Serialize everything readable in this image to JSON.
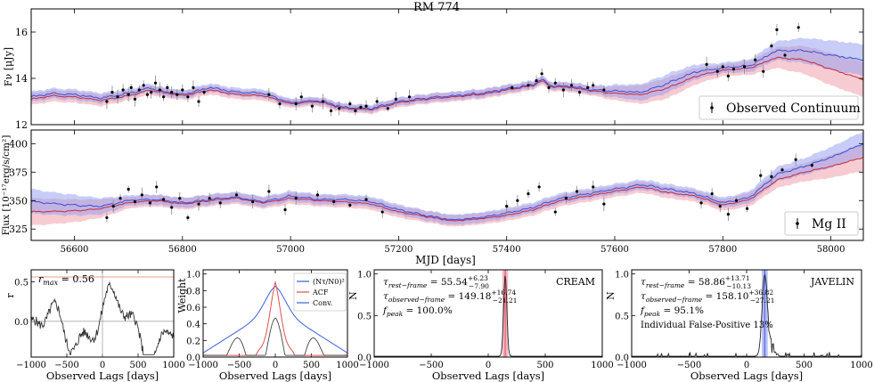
{
  "figure": {
    "title": "RM 774",
    "shared_xlabel": "MJD [days]"
  },
  "colors": {
    "cont_model_a": "#3b4dd6",
    "cont_model_b": "#c8283a",
    "band_blue": "#8f9bf0",
    "band_red": "#f2a9b4",
    "points": "#000000",
    "lag_curve": "#333333",
    "acf_red": "#e05050",
    "conv_blue": "#3c5de0",
    "nt_black": "#444444"
  },
  "chart_data": [
    {
      "id": "continuum",
      "type": "line",
      "ylabel": "Fν [μJy]",
      "xlim": [
        56520,
        58060
      ],
      "ylim": [
        12,
        17
      ],
      "yticks": [
        12,
        14,
        16
      ],
      "legend": "Observed Continuum",
      "legend_position": "bottom-right",
      "model_x": [
        56520,
        56560,
        56600,
        56650,
        56700,
        56740,
        56760,
        56800,
        56850,
        56900,
        56950,
        57000,
        57050,
        57100,
        57150,
        57200,
        57250,
        57300,
        57350,
        57400,
        57450,
        57465,
        57480,
        57520,
        57560,
        57600,
        57650,
        57700,
        57750,
        57800,
        57850,
        57900,
        57950,
        58000,
        58060
      ],
      "model_blue": [
        13.2,
        13.35,
        13.3,
        13.15,
        13.35,
        13.6,
        13.45,
        13.3,
        13.6,
        13.4,
        13.35,
        12.95,
        13.05,
        12.75,
        12.7,
        13.0,
        13.15,
        13.25,
        13.35,
        13.55,
        13.75,
        13.95,
        13.7,
        13.65,
        13.5,
        13.45,
        13.4,
        13.8,
        14.3,
        14.45,
        14.55,
        15.2,
        15.2,
        15.0,
        14.8
      ],
      "model_red": [
        13.1,
        13.25,
        13.2,
        13.05,
        13.25,
        13.5,
        13.4,
        13.25,
        13.5,
        13.3,
        13.25,
        12.9,
        13.0,
        12.7,
        12.65,
        12.95,
        13.1,
        13.2,
        13.3,
        13.5,
        13.7,
        13.9,
        13.65,
        13.6,
        13.45,
        13.35,
        13.3,
        13.6,
        14.1,
        14.35,
        14.45,
        14.9,
        14.8,
        14.4,
        13.95
      ],
      "band_halfwidth": [
        0.25,
        0.25,
        0.25,
        0.25,
        0.2,
        0.2,
        0.2,
        0.2,
        0.2,
        0.2,
        0.2,
        0.18,
        0.18,
        0.18,
        0.18,
        0.2,
        0.2,
        0.2,
        0.2,
        0.2,
        0.18,
        0.18,
        0.18,
        0.2,
        0.2,
        0.3,
        0.4,
        0.45,
        0.35,
        0.25,
        0.3,
        0.45,
        0.6,
        0.7,
        0.75
      ],
      "points_x": [
        56660,
        56670,
        56680,
        56690,
        56700,
        56705,
        56712,
        56720,
        56728,
        56735,
        56742,
        56750,
        56758,
        56765,
        56772,
        56780,
        56790,
        56800,
        56810,
        56820,
        56830,
        56840,
        56960,
        56980,
        57010,
        57020,
        57040,
        57060,
        57075,
        57090,
        57110,
        57120,
        57130,
        57140,
        57160,
        57180,
        57195,
        57220,
        57410,
        57440,
        57455,
        57465,
        57478,
        57490,
        57505,
        57520,
        57535,
        57550,
        57560,
        57580,
        57770,
        57790,
        57800,
        57810,
        57820,
        57840,
        57860,
        57875,
        57890,
        57900,
        57915,
        57940
      ],
      "points_y": [
        13.0,
        13.4,
        13.2,
        13.5,
        13.3,
        13.6,
        13.1,
        13.5,
        13.7,
        13.3,
        13.4,
        13.8,
        13.5,
        13.2,
        13.6,
        13.4,
        13.3,
        13.5,
        13.2,
        13.6,
        13.0,
        13.4,
        13.3,
        12.9,
        12.9,
        13.2,
        12.8,
        13.0,
        12.6,
        12.7,
        12.9,
        12.6,
        12.75,
        12.8,
        13.0,
        12.7,
        13.1,
        13.2,
        13.6,
        13.7,
        13.9,
        14.2,
        13.6,
        13.8,
        13.5,
        13.7,
        13.4,
        13.6,
        13.7,
        13.5,
        14.6,
        14.3,
        14.5,
        14.1,
        14.4,
        14.5,
        14.8,
        14.3,
        15.4,
        16.1,
        15.0,
        16.2
      ]
    },
    {
      "id": "mgii",
      "type": "line",
      "ylabel": "Flux [10⁻¹⁷erg/s/cm²]",
      "xlabel": "MJD [days]",
      "xlim": [
        56520,
        58060
      ],
      "ylim": [
        315,
        412
      ],
      "yticks": [
        325,
        350,
        375,
        400
      ],
      "xticks": [
        56600,
        56800,
        57000,
        57200,
        57400,
        57600,
        57800,
        58000
      ],
      "legend": "Mg II",
      "legend_position": "bottom-right",
      "model_x": [
        56520,
        56600,
        56650,
        56700,
        56750,
        56800,
        56850,
        56900,
        56950,
        57000,
        57050,
        57100,
        57150,
        57200,
        57250,
        57300,
        57350,
        57400,
        57450,
        57500,
        57550,
        57600,
        57650,
        57700,
        57750,
        57800,
        57850,
        57900,
        57950,
        58000,
        58060
      ],
      "model_blue": [
        349,
        346,
        345,
        350,
        351,
        348,
        351,
        353,
        349,
        354,
        351,
        351,
        349,
        342,
        337,
        333,
        335,
        339,
        344,
        352,
        356,
        360,
        364,
        360,
        356,
        348,
        353,
        373,
        380,
        388,
        400
      ],
      "model_red": [
        340,
        341,
        343,
        348,
        350,
        347,
        350,
        352,
        348,
        352,
        350,
        349,
        347,
        340,
        336,
        332,
        334,
        337,
        342,
        350,
        354,
        358,
        362,
        357,
        354,
        346,
        351,
        368,
        375,
        380,
        388
      ],
      "band_halfwidth": [
        12,
        10,
        8,
        5,
        5,
        5,
        5,
        5,
        5,
        5,
        5,
        5,
        5,
        5,
        5,
        5,
        5,
        5,
        5,
        5,
        5,
        5,
        5,
        5,
        5,
        5,
        6,
        7,
        8,
        10,
        12
      ],
      "points_x": [
        56660,
        56672,
        56685,
        56700,
        56712,
        56725,
        56740,
        56752,
        56765,
        56780,
        56795,
        56810,
        56830,
        56850,
        56870,
        56900,
        56930,
        56960,
        56990,
        57010,
        57050,
        57080,
        57110,
        57140,
        57170,
        57400,
        57420,
        57440,
        57460,
        57490,
        57510,
        57530,
        57560,
        57580,
        57760,
        57780,
        57795,
        57810,
        57825,
        57845,
        57870,
        57890,
        57910,
        57935,
        57965
      ],
      "points_y": [
        335,
        345,
        352,
        360,
        349,
        355,
        348,
        362,
        351,
        344,
        352,
        335,
        347,
        352,
        348,
        355,
        349,
        358,
        342,
        352,
        355,
        349,
        346,
        351,
        340,
        345,
        350,
        356,
        362,
        340,
        352,
        358,
        362,
        347,
        348,
        356,
        345,
        338,
        350,
        343,
        372,
        371,
        377,
        386,
        381
      ]
    },
    {
      "id": "iccf",
      "type": "line",
      "xlabel": "Observed Lags [days]",
      "ylabel": "r",
      "xlim": [
        -1000,
        1000
      ],
      "ylim": [
        -0.45,
        0.65
      ],
      "xticks": [
        -1000,
        -500,
        0,
        500,
        1000
      ],
      "yticks": [
        0.0,
        0.5
      ],
      "annotation": "r_max = 0.56",
      "rmax": 0.56
    },
    {
      "id": "weights",
      "type": "line",
      "xlabel": "Observed Lags [days]",
      "ylabel": "Weight",
      "xlim": [
        -1000,
        1000
      ],
      "ylim": [
        0,
        1.05
      ],
      "xticks": [
        -1000,
        -500,
        0,
        500,
        1000
      ],
      "yticks": [
        0.0,
        0.2,
        0.4,
        0.6,
        0.8,
        1.0
      ],
      "legend": [
        "(Nτ/N0)²",
        "ACF",
        "Conv."
      ],
      "legend_position": "top-right"
    },
    {
      "id": "cream",
      "type": "bar",
      "label": "CREAM",
      "xlabel": "Observed Lags [days]",
      "ylabel": "N",
      "xlim": [
        -1000,
        1000
      ],
      "ylim": [
        0,
        1.05
      ],
      "xticks": [
        -1000,
        -500,
        0,
        500,
        1000
      ],
      "yticks": [
        0.0,
        0.5,
        1.0
      ],
      "tau_rest": "55.54",
      "tau_rest_up": "+6.23",
      "tau_rest_dn": "−7.90",
      "tau_obs": "149.18",
      "tau_obs_up": "+16.74",
      "tau_obs_dn": "−21.21",
      "fpeak": "100.0%",
      "peak_lag": 149
    },
    {
      "id": "javelin",
      "type": "bar",
      "label": "JAVELIN",
      "xlabel": "Observed Lags [days]",
      "ylabel": "N",
      "xlim": [
        -1000,
        1000
      ],
      "ylim": [
        0,
        1.05
      ],
      "xticks": [
        -1000,
        -500,
        0,
        500,
        1000
      ],
      "yticks": [
        0.0,
        0.5,
        1.0
      ],
      "tau_rest": "58.86",
      "tau_rest_up": "+13.71",
      "tau_rest_dn": "−10.13",
      "tau_obs": "158.10",
      "tau_obs_up": "+36.82",
      "tau_obs_dn": "−27.21",
      "fpeak": "95.1%",
      "false_positive": "Individual False-Positive 13%",
      "peak_lag": 158
    }
  ],
  "text": {
    "rmax_label": "r",
    "rmax_sub": "max",
    "rmax_value": " = 0.56",
    "tau_rest_label": "τ",
    "tau_rest_sub": "rest−frame",
    "tau_obs_sub": "observed−frame",
    "fpeak_label": "f",
    "fpeak_sub": "peak",
    "weight_legend_nt": "(Nτ/N0)²",
    "weight_legend_acf": "ACF",
    "weight_legend_conv": "Conv."
  }
}
